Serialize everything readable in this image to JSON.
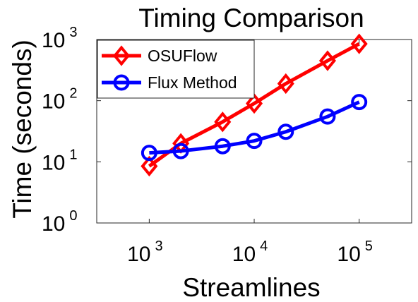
{
  "chart_data": {
    "type": "line",
    "title": "Timing Comparison",
    "xlabel": "Streamlines",
    "ylabel": "Time (seconds)",
    "x_scale": "log",
    "y_scale": "log",
    "xlim": [
      316,
      316228
    ],
    "ylim": [
      1,
      1000
    ],
    "x_ticks": [
      {
        "base": "10",
        "exp": "3",
        "value": 1000
      },
      {
        "base": "10",
        "exp": "4",
        "value": 10000
      },
      {
        "base": "10",
        "exp": "5",
        "value": 100000
      }
    ],
    "y_ticks": [
      {
        "base": "10",
        "exp": "0",
        "value": 1
      },
      {
        "base": "10",
        "exp": "1",
        "value": 10
      },
      {
        "base": "10",
        "exp": "2",
        "value": 100
      },
      {
        "base": "10",
        "exp": "3",
        "value": 1000
      }
    ],
    "grid": false,
    "legend_position": "top-left",
    "series": [
      {
        "name": "OSUFlow",
        "color": "#ff0000",
        "marker": "diamond",
        "points": [
          {
            "x": 1000,
            "y": 8.5
          },
          {
            "x": 2000,
            "y": 20
          },
          {
            "x": 5000,
            "y": 45
          },
          {
            "x": 10000,
            "y": 90
          },
          {
            "x": 20000,
            "y": 190
          },
          {
            "x": 50000,
            "y": 450
          },
          {
            "x": 100000,
            "y": 850
          }
        ]
      },
      {
        "name": "Flux Method",
        "color": "#0000ff",
        "marker": "circle",
        "points": [
          {
            "x": 1000,
            "y": 14
          },
          {
            "x": 2000,
            "y": 15
          },
          {
            "x": 5000,
            "y": 18
          },
          {
            "x": 10000,
            "y": 22
          },
          {
            "x": 20000,
            "y": 31
          },
          {
            "x": 50000,
            "y": 55
          },
          {
            "x": 100000,
            "y": 95
          }
        ]
      }
    ]
  }
}
